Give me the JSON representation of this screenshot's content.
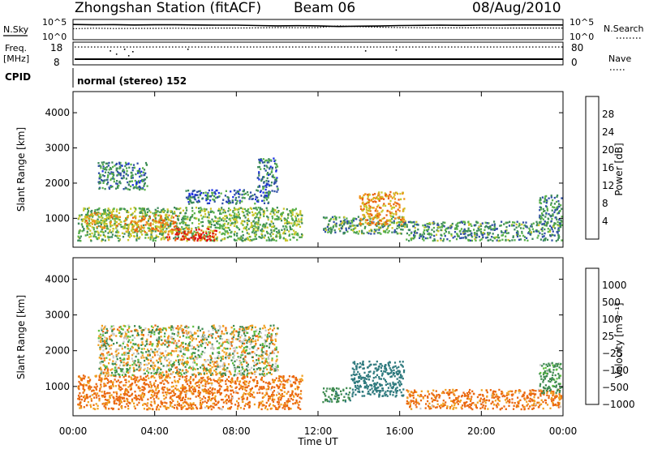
{
  "header": {
    "station": "Zhongshan Station (fitACF)",
    "beam": "Beam 06",
    "date": "08/Aug/2010"
  },
  "side_labels": {
    "nsky": "N.Sky",
    "nsearch": "N.Search",
    "freq_top": "Freq.",
    "freq_unit": "[MHz]",
    "cpid": "CPID",
    "nave": "Nave"
  },
  "cpid_text": "normal (stereo) 152",
  "chart_data": [
    {
      "type": "line",
      "name": "noise",
      "ylabel_left": "N.Sky",
      "ylabel_right": "N.Search",
      "left_ticks": [
        "10^5",
        "10^0"
      ],
      "right_ticks": [
        "10^5",
        "10^0"
      ],
      "x_hours": [
        0,
        1,
        2,
        3,
        4,
        5,
        6,
        7,
        8,
        9,
        10,
        11,
        12,
        13,
        14,
        15,
        16,
        17,
        18,
        19,
        20,
        21,
        22,
        23,
        24
      ],
      "sky_level": [
        0.2,
        0.22,
        0.21,
        0.23,
        0.22,
        0.22,
        0.23,
        0.24,
        0.24,
        0.26,
        0.28,
        0.27,
        0.28,
        0.32,
        0.3,
        0.29,
        0.26,
        0.25,
        0.24,
        0.25,
        0.24,
        0.24,
        0.23,
        0.23,
        0.23
      ],
      "search_level": [
        0.45,
        0.42,
        0.44,
        0.43,
        0.43,
        0.42,
        0.43,
        0.41,
        0.41,
        0.4,
        0.38,
        0.39,
        0.38,
        0.28,
        0.33,
        0.36,
        0.38,
        0.39,
        0.4,
        0.4,
        0.4,
        0.41,
        0.41,
        0.41,
        0.41
      ]
    },
    {
      "type": "scatter",
      "name": "frequency-nave",
      "left_ticks": [
        "18",
        "8"
      ],
      "right_ticks": [
        "80",
        "0"
      ],
      "freq_mhz": 18
    },
    {
      "type": "heatmap",
      "name": "power",
      "ylabel": "Slant Range [km]",
      "yticks": [
        1000,
        2000,
        3000,
        4000
      ],
      "ylim": [
        180,
        4600
      ],
      "colorbar_label": "Power [dB]",
      "colorbar_ticks": [
        "4",
        "8",
        "12",
        "16",
        "20",
        "24",
        "28"
      ],
      "colorbar_colors": [
        "#1b2ee6",
        "#2f4fa6",
        "#3d8a5a",
        "#58b04a",
        "#c9c62a",
        "#f09018",
        "#e86010",
        "#e21010"
      ],
      "blobs": [
        {
          "t0": 0.2,
          "t1": 11.2,
          "r0": 350,
          "r1": 1300,
          "v": 12
        },
        {
          "t0": 4.5,
          "t1": 7.0,
          "r0": 350,
          "r1": 700,
          "v": 26
        },
        {
          "t0": 2.5,
          "t1": 5.0,
          "r0": 600,
          "r1": 1100,
          "v": 20
        },
        {
          "t0": 0.6,
          "t1": 2.3,
          "r0": 700,
          "r1": 1150,
          "v": 18
        },
        {
          "t0": 1.2,
          "t1": 3.6,
          "r0": 1800,
          "r1": 2600,
          "v": 7
        },
        {
          "t0": 5.5,
          "t1": 9.6,
          "r0": 1400,
          "r1": 1800,
          "v": 6
        },
        {
          "t0": 9.0,
          "t1": 10.0,
          "r0": 1700,
          "r1": 2700,
          "v": 6
        },
        {
          "t0": 12.2,
          "t1": 16.3,
          "r0": 550,
          "r1": 1050,
          "v": 10
        },
        {
          "t0": 14.0,
          "t1": 16.2,
          "r0": 800,
          "r1": 1750,
          "v": 20
        },
        {
          "t0": 16.3,
          "t1": 23.9,
          "r0": 350,
          "r1": 900,
          "v": 9
        },
        {
          "t0": 22.8,
          "t1": 23.9,
          "r0": 800,
          "r1": 1650,
          "v": 8
        }
      ]
    },
    {
      "type": "heatmap",
      "name": "velocity",
      "ylabel": "Slant Range [km]",
      "yticks": [
        1000,
        2000,
        3000,
        4000
      ],
      "ylim": [
        180,
        4600
      ],
      "colorbar_label": "Velocity [m s⁻¹]",
      "colorbar_ticks": [
        "1000",
        "500",
        "100",
        "25",
        "−25",
        "−100",
        "−500",
        "−1000"
      ],
      "colorbar_colors": [
        "#2040a0",
        "#2f7a7e",
        "#3e8a50",
        "#5fc040",
        "#c8c8c8",
        "#f0a020",
        "#ea6810",
        "#e01010"
      ],
      "blobs": [
        {
          "t0": 0.2,
          "t1": 11.2,
          "r0": 350,
          "r1": 1300,
          "v": -150
        },
        {
          "t0": 1.2,
          "t1": 10.0,
          "r0": 1300,
          "r1": 2700,
          "v": 0
        },
        {
          "t0": 12.2,
          "t1": 13.6,
          "r0": 550,
          "r1": 950,
          "v": 200
        },
        {
          "t0": 13.6,
          "t1": 16.2,
          "r0": 700,
          "r1": 1700,
          "v": 600
        },
        {
          "t0": 16.3,
          "t1": 23.9,
          "r0": 350,
          "r1": 900,
          "v": -150
        },
        {
          "t0": 22.8,
          "t1": 23.9,
          "r0": 800,
          "r1": 1650,
          "v": 150
        }
      ]
    }
  ],
  "time_axis": {
    "xlabel": "Time UT",
    "xlim": [
      0,
      24
    ],
    "tick_hours": [
      0,
      4,
      8,
      12,
      16,
      20,
      24
    ],
    "tick_labels": [
      "00:00",
      "04:00",
      "08:00",
      "12:00",
      "16:00",
      "20:00",
      "00:00"
    ]
  }
}
